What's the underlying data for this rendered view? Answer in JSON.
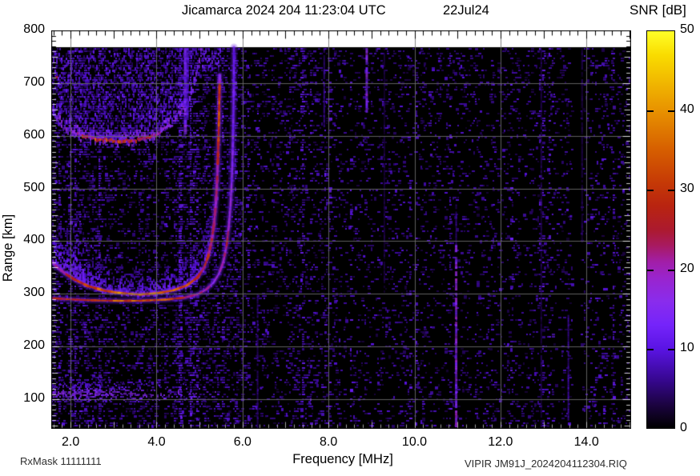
{
  "header": {
    "title": "Jicamarca 2024 204 11:23:04 UTC",
    "date": "22Jul24"
  },
  "footer": {
    "left": "RxMask 11111111",
    "right": "VIPIR  JM91J_2024204112304.RIQ"
  },
  "chart_data": {
    "type": "heatmap",
    "subtype": "ionogram",
    "title": "Jicamarca 2024 204 11:23:04 UTC",
    "date_label": "22Jul24",
    "xlabel": "Frequency [MHz]",
    "ylabel": "Range [km]",
    "xlim": [
      1.55,
      15.04
    ],
    "ylim": [
      44,
      800
    ],
    "data_top_km": 768,
    "x_ticks": [
      {
        "v": 2,
        "label": "2.0"
      },
      {
        "v": 4,
        "label": "4.0"
      },
      {
        "v": 6,
        "label": "6.0"
      },
      {
        "v": 8,
        "label": "8.0"
      },
      {
        "v": 10,
        "label": "10.0"
      },
      {
        "v": 12,
        "label": "12.0"
      },
      {
        "v": 14,
        "label": "14.0"
      }
    ],
    "y_ticks": [
      {
        "v": 100,
        "label": "100"
      },
      {
        "v": 200,
        "label": "200"
      },
      {
        "v": 300,
        "label": "300"
      },
      {
        "v": 400,
        "label": "400"
      },
      {
        "v": 500,
        "label": "500"
      },
      {
        "v": 600,
        "label": "600"
      },
      {
        "v": 700,
        "label": "700"
      },
      {
        "v": 800,
        "label": "800"
      }
    ],
    "x_minor_step": 0.2,
    "y_minor_step": 10,
    "grid": {
      "color": "#707070",
      "x_step_mhz": 2,
      "y_step_km": 100
    },
    "colorbar": {
      "label": "SNR [dB]",
      "min": 0,
      "max": 50,
      "ticks": [
        {
          "v": 0,
          "label": "0"
        },
        {
          "v": 10,
          "label": "10"
        },
        {
          "v": 20,
          "label": "20"
        },
        {
          "v": 30,
          "label": "30"
        },
        {
          "v": 40,
          "label": "40"
        },
        {
          "v": 50,
          "label": "50"
        }
      ],
      "palette_stops": [
        [
          0,
          "#000000"
        ],
        [
          3,
          "#1c0342"
        ],
        [
          6,
          "#36078e"
        ],
        [
          10,
          "#5a14e4"
        ],
        [
          13,
          "#7524fa"
        ],
        [
          16,
          "#8a2cec"
        ],
        [
          19,
          "#9a24cc"
        ],
        [
          21,
          "#a21ea6"
        ],
        [
          23,
          "#a81a60"
        ],
        [
          25,
          "#ac1a2e"
        ],
        [
          28,
          "#b92410"
        ],
        [
          31,
          "#c63a06"
        ],
        [
          35,
          "#d65e00"
        ],
        [
          40,
          "#e89200"
        ],
        [
          44,
          "#f2bc00"
        ],
        [
          47,
          "#f9dc00"
        ],
        [
          50,
          "#ffff28"
        ]
      ]
    },
    "features": {
      "noise": {
        "seed": 20240722,
        "density_below_6mhz": 0.3,
        "density_6_to_8mhz": 0.17,
        "density_above_8mhz": 0.12,
        "quiet_columns": [
          [
            13.65,
            13.85
          ]
        ]
      },
      "e_region": {
        "freq_range": [
          1.55,
          5.4
        ],
        "km_range": [
          96,
          140
        ],
        "peak_km": 112,
        "density_profile": [
          [
            1.55,
            0.5
          ],
          [
            2.0,
            0.55
          ],
          [
            2.5,
            0.5
          ],
          [
            3.0,
            0.45
          ],
          [
            3.5,
            0.34
          ],
          [
            4.0,
            0.22
          ],
          [
            4.5,
            0.14
          ],
          [
            5.0,
            0.09
          ],
          [
            5.4,
            0.05
          ]
        ]
      },
      "trace_main": {
        "points": [
          [
            1.55,
            362,
            20
          ],
          [
            1.7,
            350,
            22
          ],
          [
            1.9,
            337,
            25
          ],
          [
            2.1,
            327,
            27
          ],
          [
            2.4,
            315,
            30
          ],
          [
            2.8,
            306,
            33
          ],
          [
            3.2,
            301,
            35
          ],
          [
            3.6,
            299,
            35
          ],
          [
            4.0,
            301,
            34
          ],
          [
            4.4,
            307,
            33
          ],
          [
            4.7,
            316,
            31
          ],
          [
            4.95,
            331,
            29
          ],
          [
            5.1,
            349,
            27
          ],
          [
            5.2,
            371,
            26
          ],
          [
            5.28,
            400,
            24
          ],
          [
            5.34,
            435,
            23
          ],
          [
            5.38,
            472,
            22
          ],
          [
            5.41,
            518,
            23
          ],
          [
            5.43,
            562,
            25
          ],
          [
            5.445,
            605,
            30
          ],
          [
            5.455,
            648,
            32
          ],
          [
            5.465,
            695,
            26
          ],
          [
            5.47,
            715,
            16
          ]
        ]
      },
      "trace_second": {
        "points": [
          [
            1.55,
            292,
            22
          ],
          [
            1.9,
            290,
            28
          ],
          [
            2.4,
            288,
            32
          ],
          [
            3.0,
            287,
            33
          ],
          [
            3.6,
            287,
            33
          ],
          [
            4.2,
            289,
            31
          ],
          [
            4.65,
            293,
            27
          ],
          [
            4.95,
            299,
            23
          ],
          [
            5.15,
            308,
            20
          ],
          [
            5.32,
            321,
            18
          ],
          [
            5.45,
            338,
            17
          ],
          [
            5.55,
            360,
            19
          ],
          [
            5.63,
            392,
            22
          ],
          [
            5.68,
            428,
            20
          ],
          [
            5.72,
            468,
            17
          ],
          [
            5.75,
            515,
            15
          ],
          [
            5.77,
            565,
            14
          ],
          [
            5.785,
            625,
            13
          ],
          [
            5.795,
            690,
            12
          ],
          [
            5.8,
            768,
            10
          ]
        ]
      },
      "spread_above_main": {
        "heights": [
          [
            1.55,
            70
          ],
          [
            1.8,
            85
          ],
          [
            2.0,
            115
          ],
          [
            2.15,
            130
          ],
          [
            2.3,
            85
          ],
          [
            2.6,
            62
          ],
          [
            3.0,
            55
          ],
          [
            3.5,
            50
          ],
          [
            4.0,
            50
          ],
          [
            4.5,
            55
          ],
          [
            4.9,
            62
          ],
          [
            5.2,
            62
          ],
          [
            5.35,
            45
          ]
        ]
      },
      "upper_blob": {
        "top_km": 768,
        "bottom_boundary": [
          [
            1.55,
            645
          ],
          [
            1.7,
            622
          ],
          [
            1.9,
            608
          ],
          [
            2.2,
            597
          ],
          [
            2.6,
            590
          ],
          [
            3.0,
            586
          ],
          [
            3.4,
            586
          ],
          [
            3.8,
            592
          ],
          [
            4.05,
            602
          ],
          [
            4.3,
            617
          ],
          [
            4.55,
            640
          ],
          [
            4.75,
            668
          ],
          [
            4.9,
            706
          ],
          [
            5.0,
            740
          ],
          [
            5.05,
            766
          ]
        ],
        "rim_segments": [
          [
            2.0,
            2.25,
            19
          ],
          [
            2.25,
            2.55,
            24
          ],
          [
            2.55,
            2.85,
            30
          ],
          [
            2.85,
            3.1,
            26
          ],
          [
            3.1,
            3.35,
            30
          ],
          [
            3.35,
            3.6,
            25
          ],
          [
            3.6,
            3.85,
            28
          ],
          [
            3.85,
            4.1,
            23
          ],
          [
            4.1,
            4.3,
            20
          ]
        ],
        "top_patch": {
          "freq_range": [
            5.05,
            5.5
          ],
          "km_range": [
            722,
            768
          ],
          "density": 0.45
        }
      },
      "rfi_stripes": [
        {
          "f": 8.89,
          "km0": 645,
          "km1": 770,
          "db": 15,
          "w": 3
        },
        {
          "f": 10.97,
          "km0": 44,
          "km1": 393,
          "db": 16,
          "w": 3
        },
        {
          "f": 10.97,
          "km0": 393,
          "km1": 470,
          "db": 6,
          "w": 2
        },
        {
          "f": 4.67,
          "km0": 600,
          "km1": 768,
          "db": 14,
          "w": 4
        },
        {
          "f": 4.72,
          "km0": 630,
          "km1": 768,
          "db": 9,
          "w": 3
        },
        {
          "f": 12.95,
          "km0": 44,
          "km1": 768,
          "db": 3.5,
          "w": 2
        },
        {
          "f": 9.3,
          "km0": 300,
          "km1": 768,
          "db": 3,
          "w": 2
        },
        {
          "f": 7.9,
          "km0": 620,
          "km1": 768,
          "db": 6,
          "w": 2
        },
        {
          "f": 6.35,
          "km0": 44,
          "km1": 300,
          "db": 5,
          "w": 2
        },
        {
          "f": 13.58,
          "km0": 60,
          "km1": 260,
          "db": 7,
          "w": 2
        },
        {
          "f": 13.9,
          "km0": 400,
          "km1": 768,
          "db": 3.5,
          "w": 2
        }
      ],
      "dots": [
        [
          13.55,
          460,
          11
        ],
        [
          13.63,
          448,
          9
        ],
        [
          8.82,
          372,
          10
        ],
        [
          11.72,
          300,
          8
        ],
        [
          14.5,
          622,
          9
        ],
        [
          9.85,
          750,
          9
        ],
        [
          10.12,
          758,
          8
        ],
        [
          6.42,
          122,
          9
        ],
        [
          12.3,
          650,
          8
        ],
        [
          7.2,
          500,
          8
        ],
        [
          1.67,
          712,
          24
        ],
        [
          14.2,
          90,
          8
        ],
        [
          12.6,
          180,
          7
        ]
      ]
    }
  }
}
